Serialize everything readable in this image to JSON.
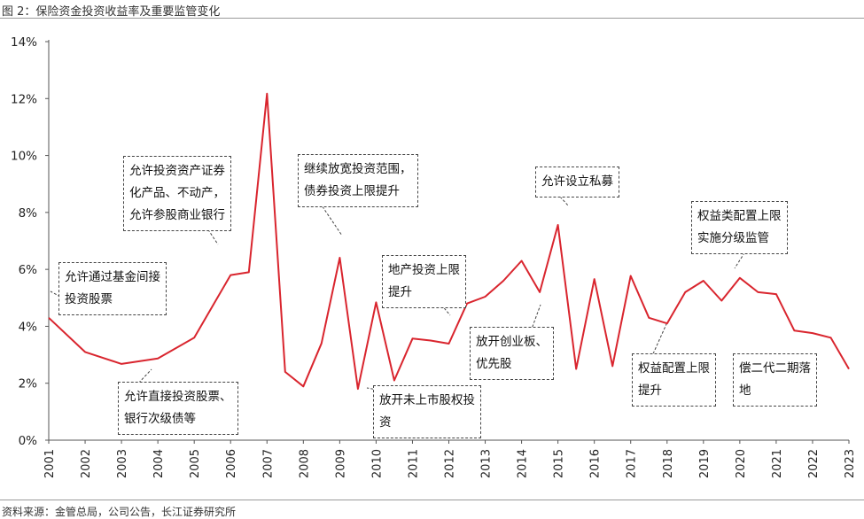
{
  "figure": {
    "title": "图 2：保险资金投资收益率及重要监管变化",
    "source": "资料来源：金管总局，公司公告，长江证券研究所"
  },
  "chart_data": {
    "type": "line",
    "title": "",
    "xlabel": "",
    "ylabel": "",
    "ylim": [
      0,
      14
    ],
    "yticks": [
      "0%",
      "2%",
      "4%",
      "6%",
      "8%",
      "10%",
      "12%",
      "14%"
    ],
    "xticks": [
      "2001",
      "2002",
      "2003",
      "2004",
      "2005",
      "2006",
      "2007",
      "2008",
      "2009",
      "2010",
      "2011",
      "2012",
      "2013",
      "2014",
      "2015",
      "2016",
      "2017",
      "2018",
      "2019",
      "2020",
      "2021",
      "2022",
      "2023"
    ],
    "grid": false,
    "series": [
      {
        "name": "",
        "color": "#d9252e",
        "points": [
          [
            2001.0,
            4.3
          ],
          [
            2002.0,
            3.1
          ],
          [
            2003.0,
            2.68
          ],
          [
            2004.0,
            2.87
          ],
          [
            2005.0,
            3.6
          ],
          [
            2005.5,
            4.7
          ],
          [
            2006.0,
            5.8
          ],
          [
            2006.5,
            5.9
          ],
          [
            2007.0,
            12.17
          ],
          [
            2007.5,
            2.4
          ],
          [
            2008.0,
            1.89
          ],
          [
            2008.5,
            3.4
          ],
          [
            2009.0,
            6.41
          ],
          [
            2009.5,
            1.8
          ],
          [
            2010.0,
            4.84
          ],
          [
            2010.5,
            2.1
          ],
          [
            2011.0,
            3.57
          ],
          [
            2011.5,
            3.5
          ],
          [
            2012.0,
            3.39
          ],
          [
            2012.5,
            4.8
          ],
          [
            2013.0,
            5.04
          ],
          [
            2013.5,
            5.6
          ],
          [
            2014.0,
            6.3
          ],
          [
            2014.5,
            5.2
          ],
          [
            2015.0,
            7.56
          ],
          [
            2015.5,
            2.5
          ],
          [
            2016.0,
            5.66
          ],
          [
            2016.5,
            2.6
          ],
          [
            2017.0,
            5.77
          ],
          [
            2017.5,
            4.3
          ],
          [
            2018.0,
            4.1
          ],
          [
            2018.5,
            5.2
          ],
          [
            2019.0,
            5.6
          ],
          [
            2019.5,
            4.9
          ],
          [
            2020.0,
            5.7
          ],
          [
            2020.5,
            5.2
          ],
          [
            2021.0,
            5.13
          ],
          [
            2021.5,
            3.85
          ],
          [
            2022.0,
            3.76
          ],
          [
            2022.5,
            3.6
          ],
          [
            2023.0,
            2.5
          ]
        ]
      }
    ],
    "annotations": [
      {
        "lines": [
          "允许通过基金间接",
          "投资股票"
        ]
      },
      {
        "lines": [
          "允许直接投资股票、",
          "银行次级债等"
        ]
      },
      {
        "lines": [
          "允许投资资产证券",
          "化产品、不动产，",
          "允许参股商业银行"
        ]
      },
      {
        "lines": [
          "继续放宽投资范围，",
          "债券投资上限提升"
        ]
      },
      {
        "lines": [
          "放开未上市股权投",
          "资"
        ]
      },
      {
        "lines": [
          "地产投资上限",
          "提升"
        ]
      },
      {
        "lines": [
          "放开创业板、",
          "优先股"
        ]
      },
      {
        "lines": [
          "允许设立私募"
        ]
      },
      {
        "lines": [
          "权益配置上限",
          "提升"
        ]
      },
      {
        "lines": [
          "权益类配置上限",
          "实施分级监管"
        ]
      },
      {
        "lines": [
          "偿二代二期落",
          "地"
        ]
      }
    ]
  }
}
